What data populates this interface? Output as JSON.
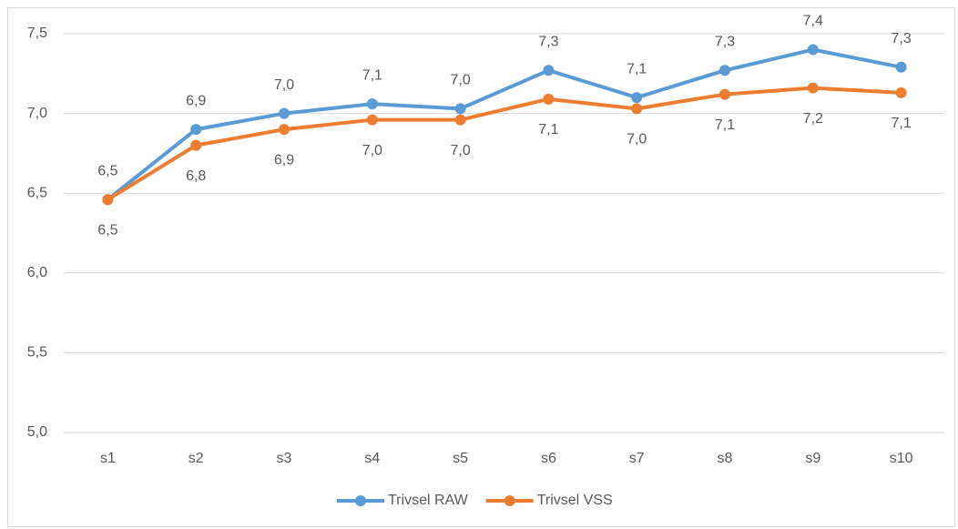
{
  "chart_data": {
    "type": "line",
    "categories": [
      "s1",
      "s2",
      "s3",
      "s4",
      "s5",
      "s6",
      "s7",
      "s8",
      "s9",
      "s10"
    ],
    "series": [
      {
        "name": "Trivsel RAW",
        "color": "#5b9bd5",
        "values": [
          6.46,
          6.9,
          7.0,
          7.06,
          7.03,
          7.27,
          7.1,
          7.27,
          7.4,
          7.29
        ],
        "value_labels": [
          "6,5",
          "6,9",
          "7,0",
          "7,1",
          "7,0",
          "7,3",
          "7,1",
          "7,3",
          "7,4",
          "7,3"
        ]
      },
      {
        "name": "Trivsel VSS",
        "color": "#ed7d31",
        "values": [
          6.46,
          6.8,
          6.9,
          6.96,
          6.96,
          7.09,
          7.03,
          7.12,
          7.16,
          7.13
        ],
        "value_labels": [
          "6,5",
          "6,8",
          "6,9",
          "7,0",
          "7,0",
          "7,1",
          "7,0",
          "7,1",
          "7,2",
          "7,1"
        ]
      }
    ],
    "ylim": [
      5.0,
      7.5
    ],
    "yticks": [
      {
        "value": 5.0,
        "label": "5,0"
      },
      {
        "value": 5.5,
        "label": "5,5"
      },
      {
        "value": 6.0,
        "label": "6,0"
      },
      {
        "value": 6.5,
        "label": "6,5"
      },
      {
        "value": 7.0,
        "label": "7,0"
      },
      {
        "value": 7.5,
        "label": "7,5"
      }
    ],
    "grid": true,
    "legend": "bottom"
  }
}
